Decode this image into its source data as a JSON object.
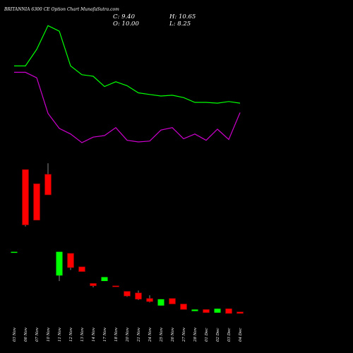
{
  "title": "BRITANNIA 6300  CE Option  Chart MunafaSutra.com",
  "ohlc": {
    "c": "C: 9.40",
    "o": "O: 10.00",
    "h": "H: 10.65",
    "l": "L: 8.25"
  },
  "colors": {
    "background": "#000000",
    "up": "#00ff00",
    "down": "#ff0000",
    "line_green": "#00ff00",
    "line_magenta": "#cc00cc",
    "wick": "#888888",
    "text": "#ffffff"
  },
  "chart_data": {
    "type": "candlestick",
    "categories": [
      "03 Nov",
      "06 Nov",
      "07 Nov",
      "10 Nov",
      "11 Nov",
      "12 Nov",
      "13 Nov",
      "14 Nov",
      "17 Nov",
      "18 Nov",
      "20 Nov",
      "21 Nov",
      "24 Nov",
      "25 Nov",
      "26 Nov",
      "27 Nov",
      "28 Nov",
      "01 Dec",
      "02 Dec",
      "03 Dec",
      "04 Dec"
    ],
    "price_range": [
      0,
      400
    ],
    "candles": [
      {
        "o": 128,
        "c": 128,
        "h": 128,
        "l": 128
      },
      {
        "o": 232,
        "c": 162,
        "h": 232,
        "l": 160
      },
      {
        "o": 214,
        "c": 168,
        "h": 214,
        "l": 168
      },
      {
        "o": 226,
        "c": 200,
        "h": 240,
        "l": 200
      },
      {
        "o": 98,
        "c": 128,
        "h": 128,
        "l": 91
      },
      {
        "o": 126,
        "c": 108,
        "h": 126,
        "l": 105
      },
      {
        "o": 109,
        "c": 103,
        "h": 109,
        "l": 103
      },
      {
        "o": 88,
        "c": 85,
        "h": 88,
        "l": 83
      },
      {
        "o": 91,
        "c": 96,
        "h": 96,
        "l": 91
      },
      {
        "o": 85,
        "c": 84,
        "h": 85,
        "l": 84
      },
      {
        "o": 78,
        "c": 72,
        "h": 78,
        "l": 71
      },
      {
        "o": 76,
        "c": 68,
        "h": 79,
        "l": 67
      },
      {
        "o": 69,
        "c": 65,
        "h": 73,
        "l": 64
      },
      {
        "o": 60,
        "c": 68,
        "h": 68,
        "l": 60
      },
      {
        "o": 69,
        "c": 62,
        "h": 69,
        "l": 62
      },
      {
        "o": 62,
        "c": 55,
        "h": 62,
        "l": 55
      },
      {
        "o": 53,
        "c": 55,
        "h": 55,
        "l": 53
      },
      {
        "o": 55,
        "c": 51,
        "h": 55,
        "l": 51
      },
      {
        "o": 51,
        "c": 56,
        "h": 56,
        "l": 51
      },
      {
        "o": 56,
        "c": 50,
        "h": 56,
        "l": 50
      },
      {
        "o": 52,
        "c": 50,
        "h": 52,
        "l": 50
      }
    ],
    "series": [
      {
        "color": "#00ff00",
        "values": [
          363,
          363,
          384,
          414,
          407,
          363,
          352,
          350,
          337,
          343,
          338,
          329,
          327,
          325,
          326,
          323,
          317,
          317,
          316,
          318,
          316
        ]
      },
      {
        "color": "#cc00cc",
        "values": [
          355,
          355,
          348,
          303,
          284,
          277,
          266,
          273,
          275,
          285,
          269,
          267,
          268,
          282,
          285,
          271,
          277,
          269,
          283,
          270,
          304
        ]
      }
    ]
  }
}
